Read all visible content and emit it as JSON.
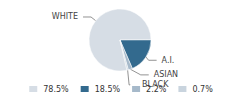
{
  "chart_data": {
    "type": "pie",
    "categories": [
      "WHITE",
      "A.I.",
      "ASIAN",
      "BLACK"
    ],
    "values": [
      78.5,
      18.5,
      2.2,
      0.7
    ],
    "value_labels": [
      "78.5%",
      "18.5%",
      "2.2%",
      "0.7%"
    ],
    "colors": [
      "#d6dde5",
      "#336a8e",
      "#a6b9ca",
      "#c9d4de"
    ],
    "data_labels": true,
    "legend": "bottom"
  }
}
